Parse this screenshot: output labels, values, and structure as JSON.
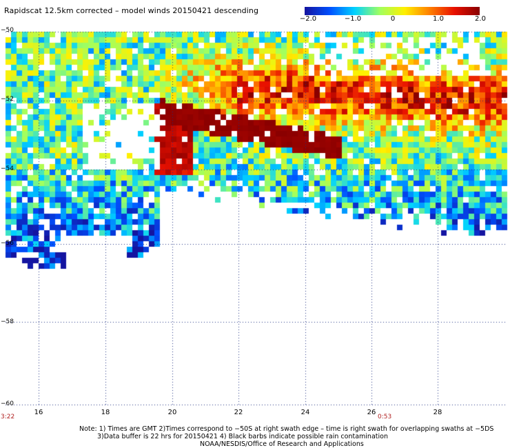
{
  "title": "Rapidscat 12.5km corrected – model winds 20150421 descending",
  "colorbar": {
    "ticks": [
      "−2.0",
      "−1.0",
      "0",
      "1.0",
      "2.0"
    ],
    "range": [
      -2.0,
      2.0
    ],
    "colors": [
      "#1414a0",
      "#0050ff",
      "#00d2ff",
      "#a0ff60",
      "#fff000",
      "#ff8000",
      "#e81000",
      "#8a0000"
    ]
  },
  "axes": {
    "lon_ticks": [
      "16",
      "18",
      "20",
      "22",
      "24",
      "26",
      "28"
    ],
    "lat_ticks": [
      "−50",
      "−52",
      "−54",
      "−56",
      "−58",
      "−60"
    ],
    "lon_range": [
      15,
      30
    ],
    "lat_range": [
      -50,
      -60
    ],
    "grid": true
  },
  "time_labels": {
    "left": "3:22",
    "right": "0:53"
  },
  "notes": {
    "line1": "Note: 1) Times are GMT 2)Times correspond to −50S at right swath edge – time is right swath for overlapping swaths at −5DS",
    "line2": "3)Data buffer is 22 hrs for 20150421 4) Black barbs indicate possible rain contamination",
    "line3": "NOAA/NESDIS/Office of Research and Applications"
  }
}
